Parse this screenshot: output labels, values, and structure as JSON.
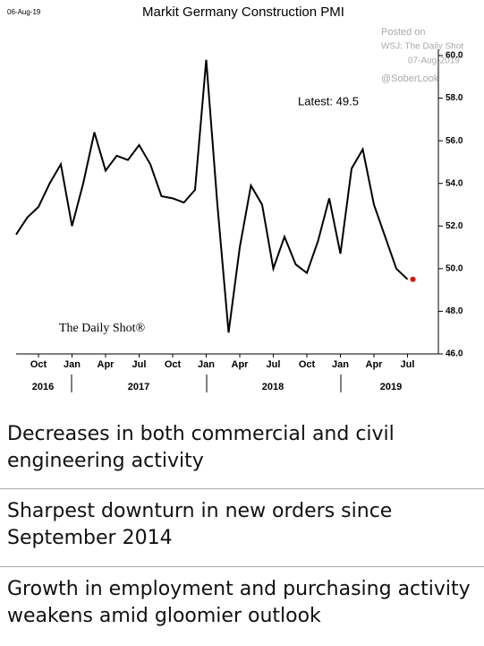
{
  "chart_data": {
    "type": "line",
    "title": "Markit Germany Construction PMI",
    "date_stamp": "06-Aug-19",
    "posted": [
      "Posted on",
      "WSJ: The Daily Shot",
      "07-Aug-2019",
      "@SoberLook"
    ],
    "annotation": "Latest:  49.5",
    "watermark": "The Daily Shot®",
    "categories": [
      null,
      null,
      "Oct",
      null,
      null,
      "Jan",
      null,
      null,
      "Apr",
      null,
      null,
      "Jul",
      null,
      null,
      "Oct",
      null,
      null,
      "Jan",
      null,
      null,
      "Apr",
      null,
      null,
      "Jul",
      null,
      null,
      "Oct",
      null,
      null,
      "Jan",
      null,
      null,
      "Apr",
      null,
      null,
      "Jul"
    ],
    "years": [
      "2016",
      "2017",
      "2018",
      "2019"
    ],
    "series": [
      {
        "name": "Markit Germany Construction PMI",
        "color": "#000000",
        "values": [
          51.6,
          52.4,
          52.9,
          54.0,
          54.9,
          52.0,
          54.0,
          56.4,
          54.6,
          55.3,
          55.1,
          55.8,
          54.9,
          53.4,
          53.3,
          53.1,
          53.7,
          59.8,
          53.0,
          47.0,
          51.0,
          53.9,
          53.0,
          50.0,
          51.5,
          50.2,
          49.8,
          51.3,
          53.3,
          50.7,
          54.7,
          55.6,
          53.0,
          51.5,
          50.0,
          49.5
        ]
      }
    ],
    "last_point_color": "#e01010",
    "ylim": [
      46,
      60
    ],
    "yticks": [
      {
        "value": 46,
        "label": "46.0"
      },
      {
        "value": 48,
        "label": "48.0"
      },
      {
        "value": 50,
        "label": "50.0"
      },
      {
        "value": 52,
        "label": "52.0"
      },
      {
        "value": 54,
        "label": "54.0"
      },
      {
        "value": 56,
        "label": "56.0"
      },
      {
        "value": 58,
        "label": "58.0"
      },
      {
        "value": 60,
        "label": "60.0"
      }
    ],
    "grid": false
  },
  "headlines": [
    "Decreases in both commercial and civil engineering activity",
    "Sharpest downturn in new orders since September 2014",
    "Growth in employment and purchasing activity weakens amid gloomier outlook"
  ]
}
